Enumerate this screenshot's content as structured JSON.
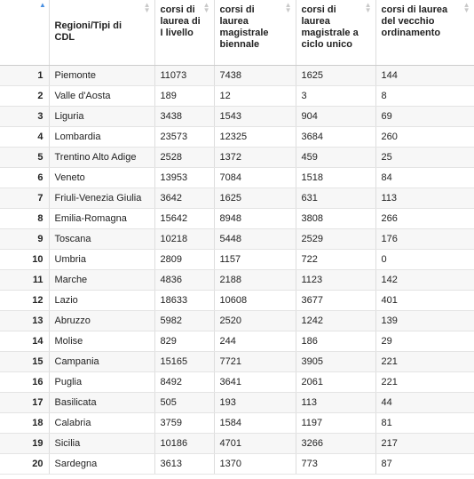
{
  "table": {
    "columns": [
      "",
      "Regioni/Tipi di CDL",
      "corsi di laurea di I livello",
      "corsi di laurea magistrale biennale",
      "corsi di laurea magistrale a ciclo unico",
      "corsi di laurea del vecchio ordinamento"
    ],
    "rows": [
      [
        "1",
        "Piemonte",
        "11073",
        "7438",
        "1625",
        "144"
      ],
      [
        "2",
        "Valle d'Aosta",
        "189",
        "12",
        "3",
        "8"
      ],
      [
        "3",
        "Liguria",
        "3438",
        "1543",
        "904",
        "69"
      ],
      [
        "4",
        "Lombardia",
        "23573",
        "12325",
        "3684",
        "260"
      ],
      [
        "5",
        "Trentino Alto Adige",
        "2528",
        "1372",
        "459",
        "25"
      ],
      [
        "6",
        "Veneto",
        "13953",
        "7084",
        "1518",
        "84"
      ],
      [
        "7",
        "Friuli-Venezia Giulia",
        "3642",
        "1625",
        "631",
        "113"
      ],
      [
        "8",
        "Emilia-Romagna",
        "15642",
        "8948",
        "3808",
        "266"
      ],
      [
        "9",
        "Toscana",
        "10218",
        "5448",
        "2529",
        "176"
      ],
      [
        "10",
        "Umbria",
        "2809",
        "1157",
        "722",
        "0"
      ],
      [
        "11",
        "Marche",
        "4836",
        "2188",
        "1123",
        "142"
      ],
      [
        "12",
        "Lazio",
        "18633",
        "10608",
        "3677",
        "401"
      ],
      [
        "13",
        "Abruzzo",
        "5982",
        "2520",
        "1242",
        "139"
      ],
      [
        "14",
        "Molise",
        "829",
        "244",
        "186",
        "29"
      ],
      [
        "15",
        "Campania",
        "15165",
        "7721",
        "3905",
        "221"
      ],
      [
        "16",
        "Puglia",
        "8492",
        "3641",
        "2061",
        "221"
      ],
      [
        "17",
        "Basilicata",
        "505",
        "193",
        "113",
        "44"
      ],
      [
        "18",
        "Calabria",
        "3759",
        "1584",
        "1197",
        "81"
      ],
      [
        "19",
        "Sicilia",
        "10186",
        "4701",
        "3266",
        "217"
      ],
      [
        "20",
        "Sardegna",
        "3613",
        "1370",
        "773",
        "87"
      ]
    ]
  },
  "colors": {
    "sort_active": "#4a90e2",
    "sort_inactive": "#c9c9c9",
    "stripe": "#f7f7f7"
  },
  "icons": {
    "sort": "sort-arrows-icon",
    "sort_active": "sort-ascending-icon"
  }
}
